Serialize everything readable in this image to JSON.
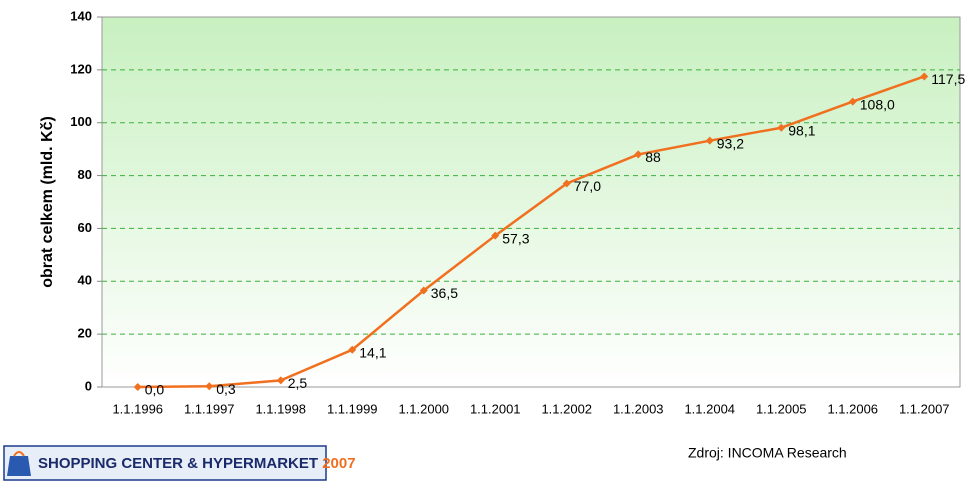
{
  "chart_data": {
    "type": "line",
    "y_label": "obrat celkem (mld. Kč)",
    "categories": [
      "1.1.1996",
      "1.1.1997",
      "1.1.1998",
      "1.1.1999",
      "1.1.2000",
      "1.1.2001",
      "1.1.2002",
      "1.1.2003",
      "1.1.2004",
      "1.1.2005",
      "1.1.2006",
      "1.1.2007"
    ],
    "values": [
      0.0,
      0.3,
      2.5,
      14.1,
      36.5,
      57.3,
      77.0,
      88,
      93.2,
      98.1,
      108.0,
      117.5
    ],
    "value_labels": [
      "0,0",
      "0,3",
      "2,5",
      "14,1",
      "36,5",
      "57,3",
      "77,0",
      "88",
      "93,2",
      "98,1",
      "108,0",
      "117,5"
    ],
    "color": "#f07020",
    "ylim": [
      0,
      140
    ],
    "yticks": [
      0,
      20,
      40,
      60,
      80,
      100,
      120,
      140
    ],
    "grid": true
  },
  "footer": {
    "logo_text": "SHOPPING CENTER & HYPERMARKET",
    "logo_year": "2007",
    "source": "Zdroj: INCOMA Research"
  }
}
